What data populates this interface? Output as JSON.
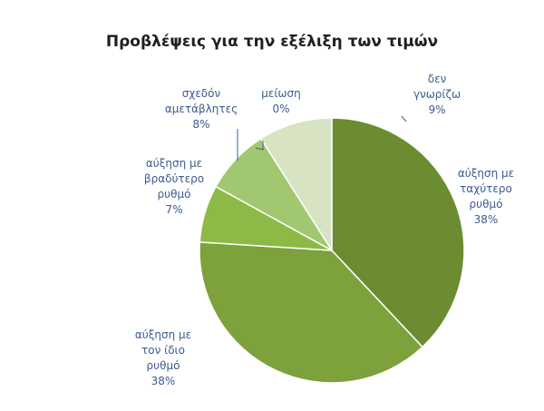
{
  "chart_data": {
    "type": "pie",
    "title": "Προβλέψεις για την εξέλιξη των τιμών",
    "slices": [
      {
        "label_lines": [
          "αύξηση με",
          "ταχύτερο",
          "ρυθμό"
        ],
        "value": 38,
        "value_label": "38%",
        "color": "#6b8c30"
      },
      {
        "label_lines": [
          "αύξηση με",
          "τον ίδιο",
          "ρυθμό"
        ],
        "value": 38,
        "value_label": "38%",
        "color": "#7da13b"
      },
      {
        "label_lines": [
          "αύξηση με",
          "βραδύτερο",
          "ρυθμό"
        ],
        "value": 7,
        "value_label": "7%",
        "color": "#8dba46"
      },
      {
        "label_lines": [
          "σχεδόν",
          "αμετάβλητες"
        ],
        "value": 8,
        "value_label": "8%",
        "color": "#a2c771"
      },
      {
        "label_lines": [
          "μείωση"
        ],
        "value": 0,
        "value_label": "0%",
        "color": "#b7d08f"
      },
      {
        "label_lines": [
          "δεν",
          "γνωρίζω"
        ],
        "value": 9,
        "value_label": "9%",
        "color": "#d7e3c2"
      }
    ],
    "legend": "none"
  }
}
